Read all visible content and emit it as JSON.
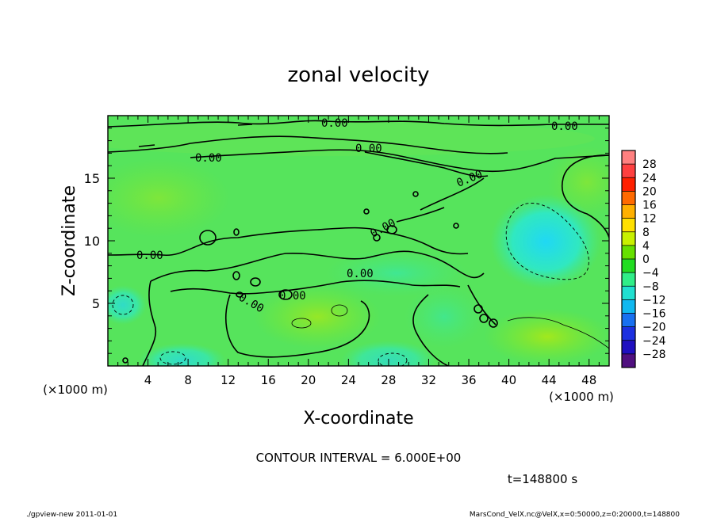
{
  "chart_data": {
    "type": "heatmap",
    "title": "zonal velocity",
    "xlabel": "X-coordinate",
    "ylabel": "Z-coordinate",
    "x_unit_label": "(×1000 m)",
    "z_unit_label": "(×1000 m)",
    "xlim": [
      0,
      50
    ],
    "ylim": [
      0,
      20
    ],
    "x_ticks": [
      4,
      8,
      12,
      16,
      20,
      24,
      28,
      32,
      36,
      40,
      44,
      48
    ],
    "y_ticks": [
      5,
      10,
      15
    ],
    "colorbar": {
      "labels": [
        "28",
        "24",
        "20",
        "16",
        "12",
        "8",
        "4",
        "0",
        "−4",
        "−8",
        "−12",
        "−16",
        "−20",
        "−24",
        "−28"
      ],
      "colors": [
        "#ff8080",
        "#ff4040",
        "#ff2000",
        "#ff6a00",
        "#ffb000",
        "#ffe000",
        "#c8f000",
        "#66e000",
        "#22dd22",
        "#30ee88",
        "#20e0d0",
        "#10b8f0",
        "#1870f0",
        "#1c30e0",
        "#2010c0",
        "#501080"
      ]
    },
    "contour_labels": [
      "0.00",
      "0.00",
      "0.00",
      "0.00",
      "0.00",
      "0.00",
      "0.00",
      "0.00",
      "0.00",
      "0.00"
    ],
    "contour_interval_text": "CONTOUR INTERVAL = 6.000E+00",
    "time_text": "t=148800 s",
    "features": [
      {
        "kind": "negative-max",
        "x": 43.5,
        "z": 10,
        "value": -10
      },
      {
        "kind": "positive-max",
        "x": 42,
        "z": 2.5,
        "value": 6
      }
    ]
  },
  "footer": {
    "left": "./gpview-new  2011-01-01",
    "right": "MarsCond_VelX.nc@VelX,x=0:50000,z=0:20000,t=148800"
  }
}
